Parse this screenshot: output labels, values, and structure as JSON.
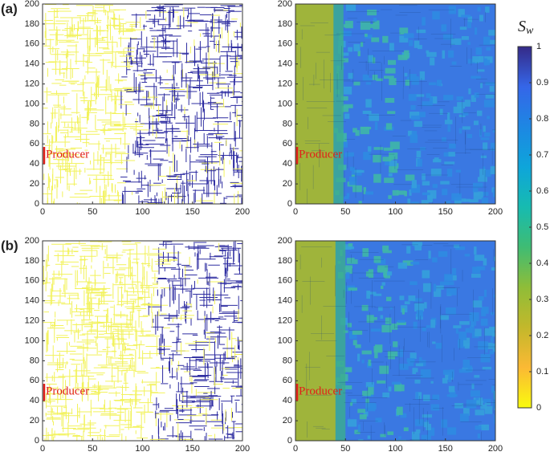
{
  "chart_data": [
    {
      "type": "heatmap",
      "panel_label": "(a)",
      "annotation": "Producer",
      "xlim": [
        0,
        200
      ],
      "ylim": [
        0,
        200
      ],
      "xticks": [
        0,
        50,
        100,
        150,
        200
      ],
      "yticks": [
        0,
        20,
        40,
        60,
        80,
        100,
        120,
        140,
        160,
        180,
        200
      ]
    },
    {
      "type": "heatmap",
      "annotation": "Producer",
      "xlim": [
        0,
        200
      ],
      "ylim": [
        0,
        200
      ],
      "xticks": [
        0,
        50,
        100,
        150,
        200
      ],
      "yticks": [
        0,
        20,
        40,
        60,
        80,
        100,
        120,
        140,
        160,
        180,
        200
      ]
    },
    {
      "type": "heatmap",
      "panel_label": "(b)",
      "annotation": "Producer",
      "xlim": [
        0,
        200
      ],
      "ylim": [
        0,
        200
      ],
      "xticks": [
        0,
        50,
        100,
        150,
        200
      ],
      "yticks": [
        0,
        20,
        40,
        60,
        80,
        100,
        120,
        140,
        160,
        180,
        200
      ]
    },
    {
      "type": "heatmap",
      "annotation": "Producer",
      "xlim": [
        0,
        200
      ],
      "ylim": [
        0,
        200
      ],
      "xticks": [
        0,
        50,
        100,
        150,
        200
      ],
      "yticks": [
        0,
        20,
        40,
        60,
        80,
        100,
        120,
        140,
        160,
        180,
        200
      ]
    }
  ],
  "colorbar": {
    "title": "S",
    "title_subscript": "w",
    "lim": [
      0,
      1
    ],
    "ticks": [
      0,
      0.1,
      0.2,
      0.3,
      0.4,
      0.5,
      0.6,
      0.7,
      0.8,
      0.9,
      1
    ],
    "colors": [
      "#f9fb0e",
      "#fbb934",
      "#c3b82b",
      "#8fbd38",
      "#3fbc73",
      "#17bbb0",
      "#0ea5da",
      "#1d87e3",
      "#3566e8",
      "#352a87"
    ]
  }
}
